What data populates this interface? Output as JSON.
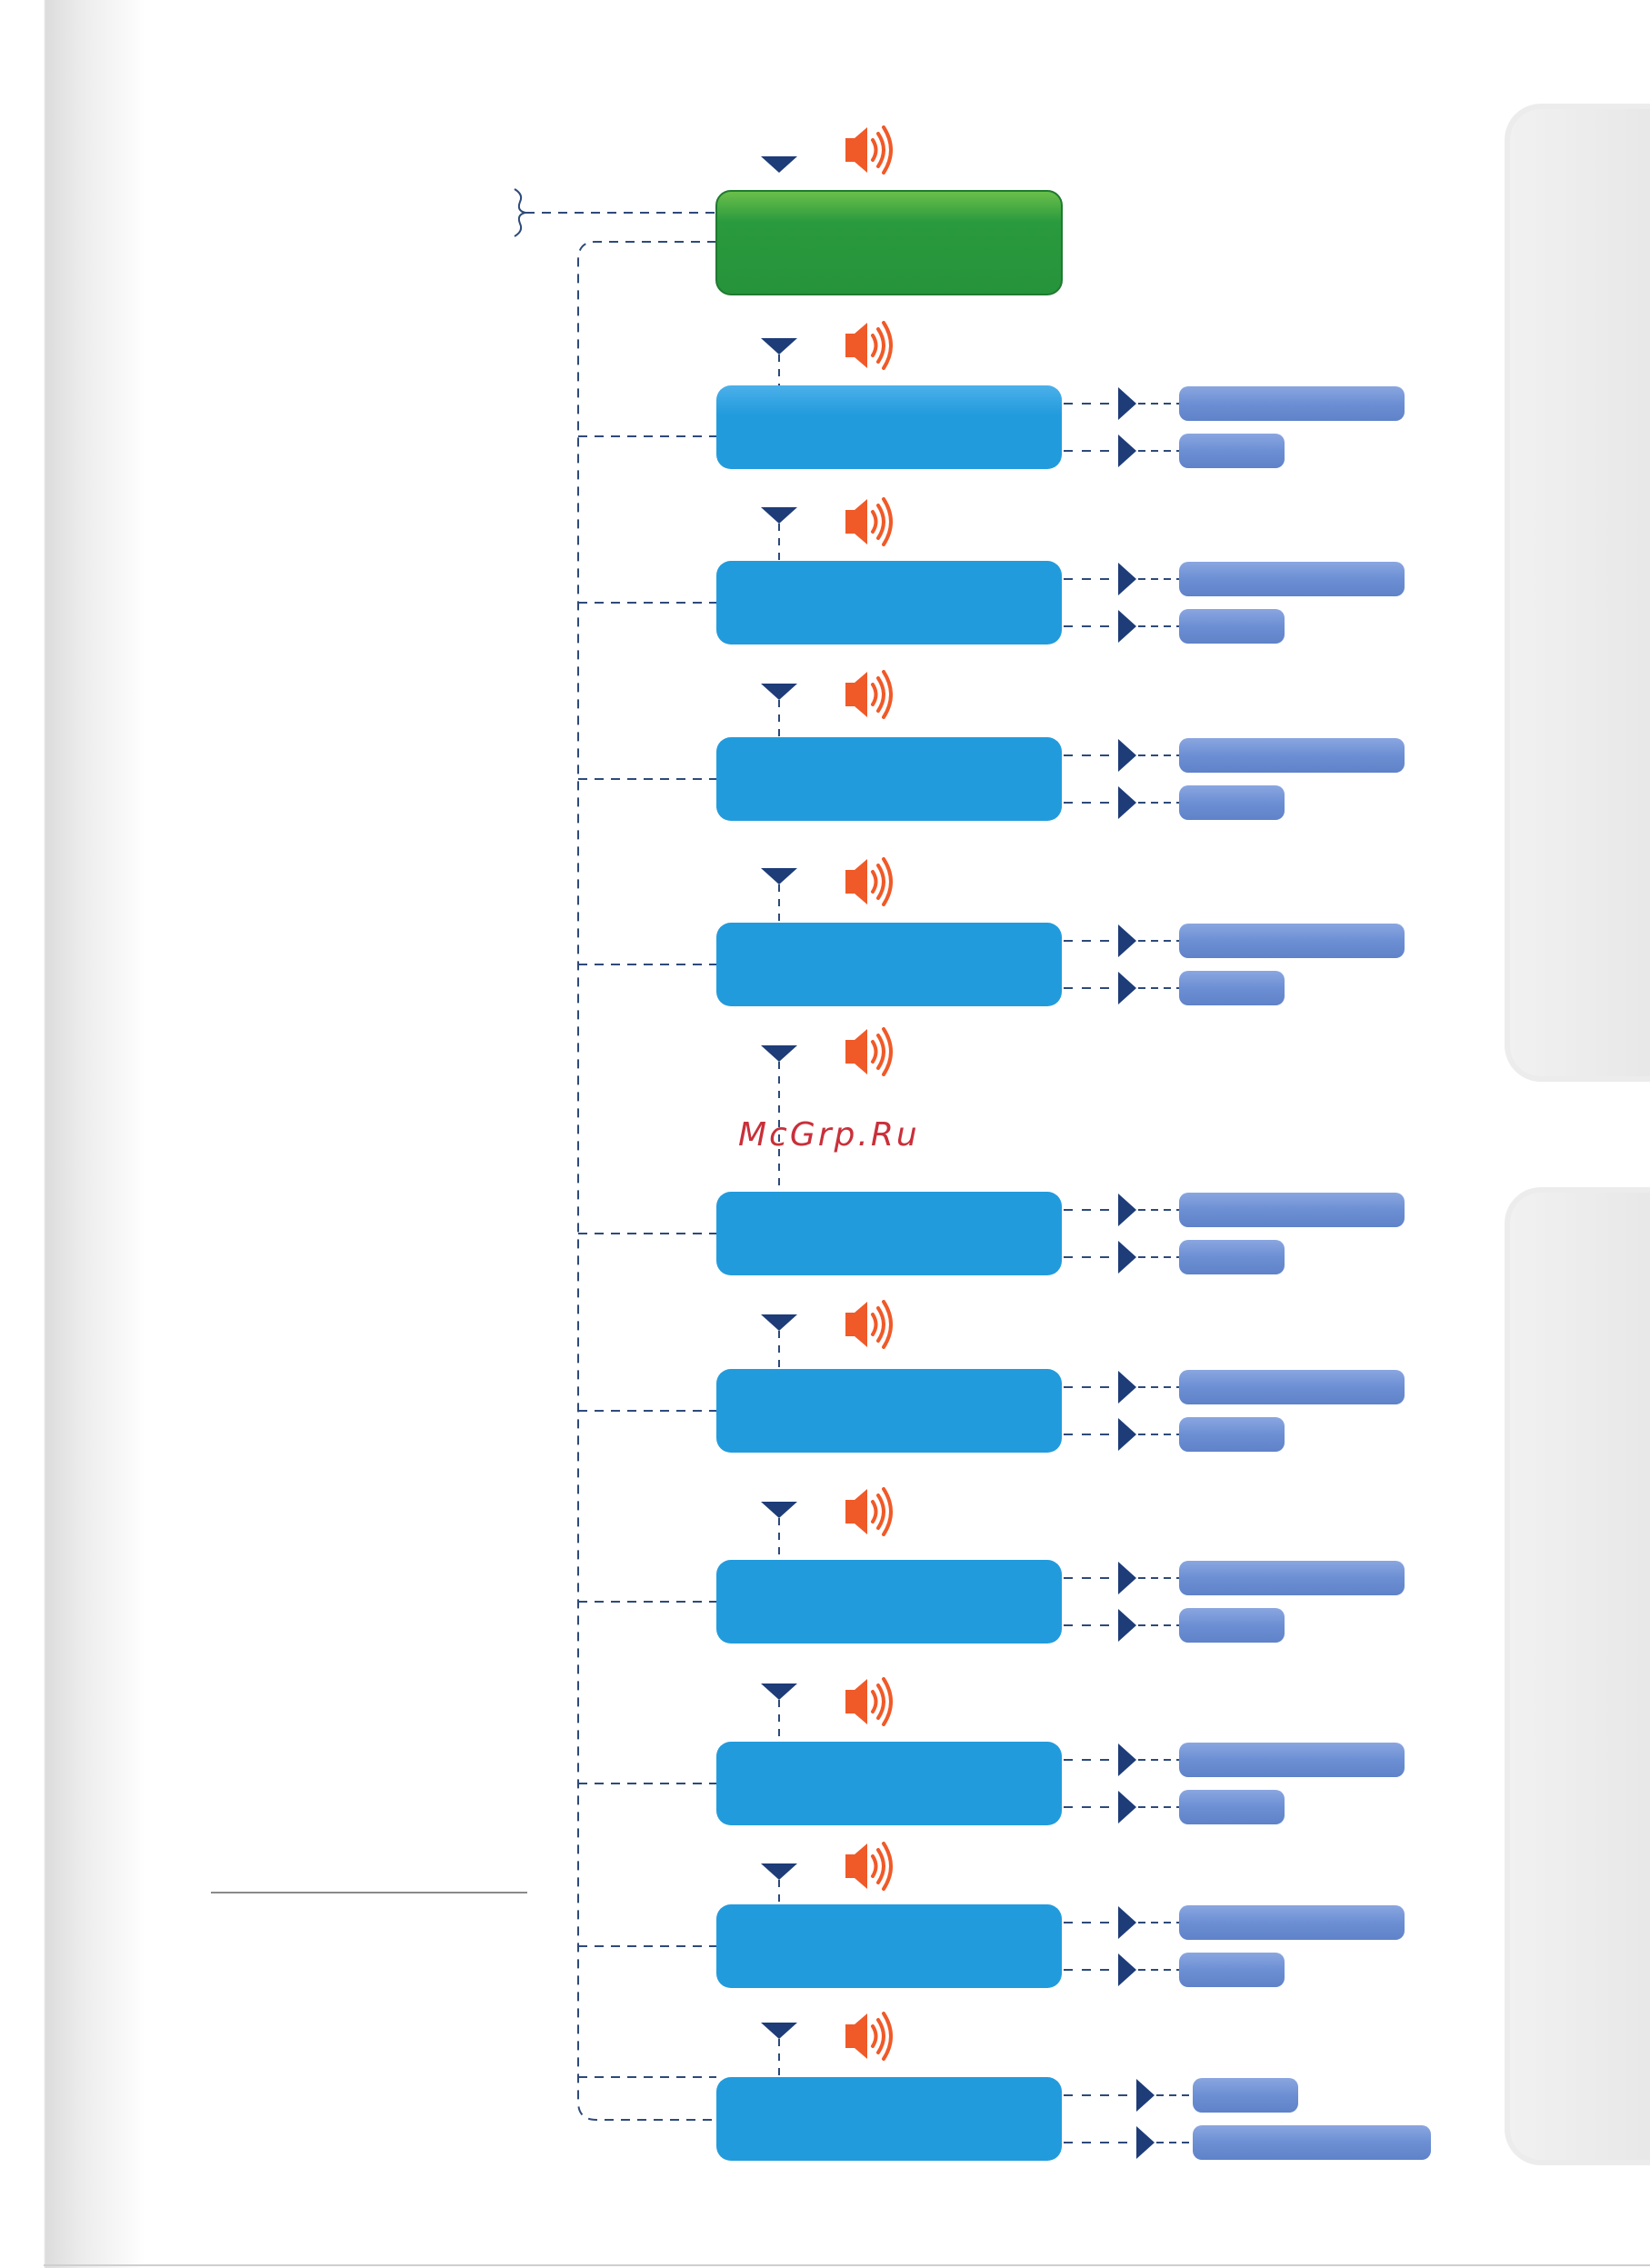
{
  "watermark": "McGrp.Ru",
  "colors": {
    "root_box": "#2a9a3e",
    "step_box": "#229bdd",
    "option_bar": "#6c8fd4",
    "marker": "#1d3c78",
    "speaker": "#f05a28",
    "dash": "#2e4a7a"
  },
  "icons": {
    "speaker": "speaker-icon",
    "down_marker": "down-triangle-icon",
    "right_marker": "right-triangle-icon"
  }
}
